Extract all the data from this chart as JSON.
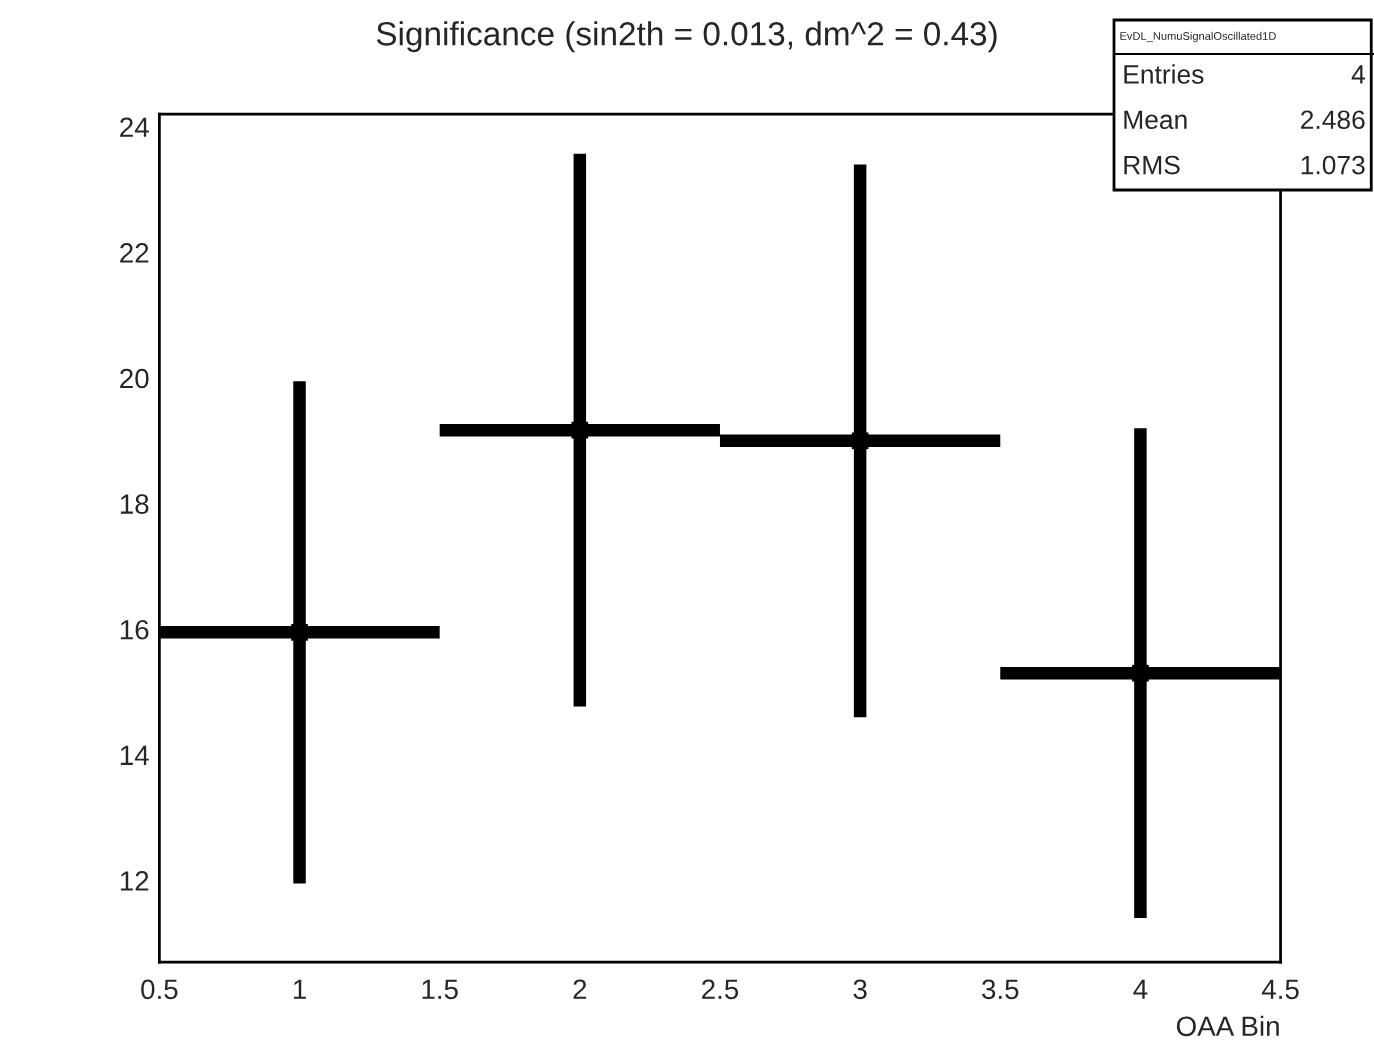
{
  "chart_data": {
    "type": "scatter",
    "title": "Significance (sin2th = 0.013, dm^2 = 0.43)",
    "xlabel": "OAA Bin",
    "x": [
      1,
      2,
      3,
      4
    ],
    "values": [
      15.95,
      19.17,
      19.0,
      15.3
    ],
    "errors": [
      4.0,
      4.4,
      4.4,
      3.9
    ],
    "xerrors": [
      0.5,
      0.5,
      0.5,
      0.5
    ],
    "color": "#000000",
    "marker": "square",
    "xlim": [
      0.5,
      4.5
    ],
    "xticks": [
      0.5,
      1,
      1.5,
      2,
      2.5,
      3,
      3.5,
      4,
      4.5
    ],
    "ylim": [
      10.7,
      24.2
    ],
    "yticks": [
      12,
      14,
      16,
      18,
      20,
      22,
      24
    ],
    "annotations": [
      "EvDL_NumuSignalOscillated1D",
      "Entries",
      "4",
      "Mean",
      "2.486",
      "RMS",
      "1.073"
    ]
  }
}
